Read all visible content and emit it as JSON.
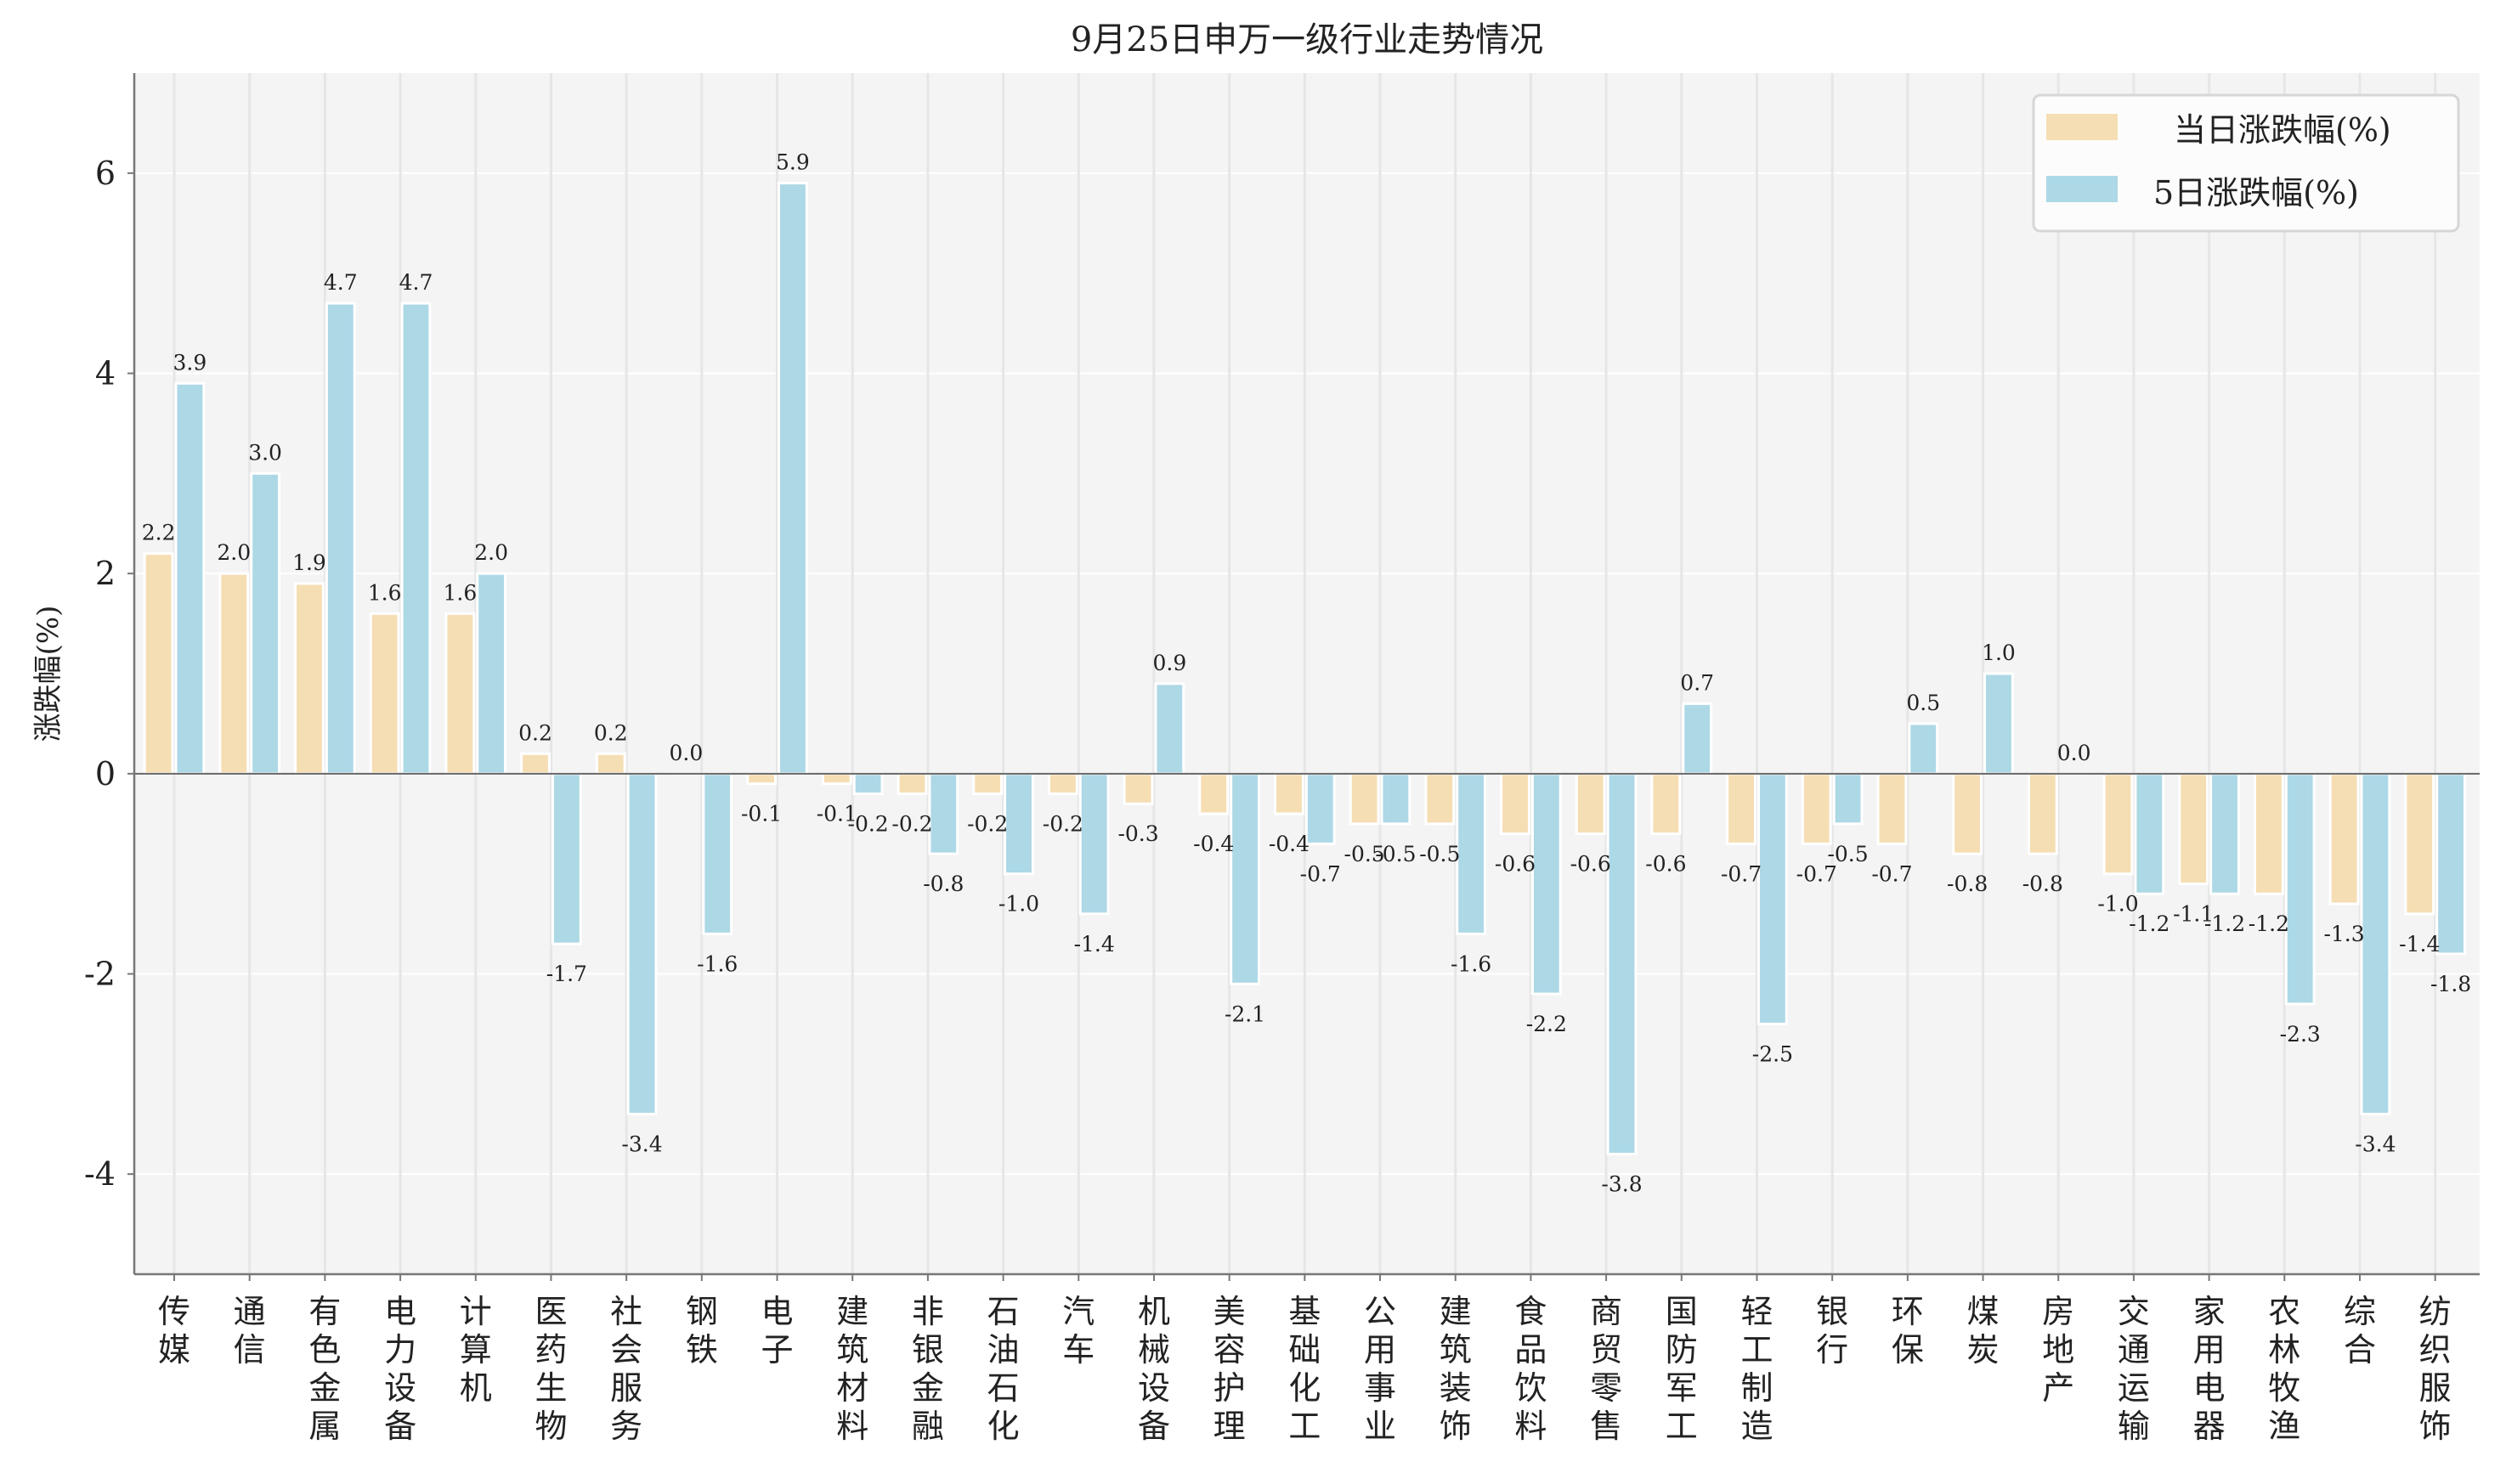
{
  "chart_data": {
    "type": "bar",
    "title": "9月25日申万一级行业走势情况",
    "xlabel": "",
    "ylabel": "涨跌幅(%)",
    "ylim": [
      -5,
      7
    ],
    "yticks": [
      -4,
      -2,
      0,
      2,
      4,
      6
    ],
    "grid": true,
    "legend_position": "top-right",
    "categories": [
      "传媒",
      "通信",
      "有色金属",
      "电力设备",
      "计算机",
      "医药生物",
      "社会服务",
      "钢铁",
      "电子",
      "建筑材料",
      "非银金融",
      "石油石化",
      "汽车",
      "机械设备",
      "美容护理",
      "基础化工",
      "公用事业",
      "建筑装饰",
      "食品饮料",
      "商贸零售",
      "国防军工",
      "轻工制造",
      "银行",
      "环保",
      "煤炭",
      "房地产",
      "交通运输",
      "家用电器",
      "农林牧渔",
      "综合",
      "纺织服饰"
    ],
    "series": [
      {
        "name": "当日涨跌幅(%)",
        "color": "#F5DEB3",
        "values": [
          2.2,
          2.0,
          1.9,
          1.6,
          1.6,
          0.2,
          0.2,
          0.0,
          -0.1,
          -0.1,
          -0.2,
          -0.2,
          -0.2,
          -0.3,
          -0.4,
          -0.4,
          -0.5,
          -0.5,
          -0.6,
          -0.6,
          -0.6,
          -0.7,
          -0.7,
          -0.7,
          -0.8,
          -0.8,
          -1.0,
          -1.1,
          -1.2,
          -1.3,
          -1.4
        ]
      },
      {
        "name": "5日涨跌幅(%)",
        "color": "#ADD8E6",
        "values": [
          3.9,
          3.0,
          4.7,
          4.7,
          2.0,
          -1.7,
          -3.4,
          -1.6,
          5.9,
          -0.2,
          -0.8,
          -1.0,
          -1.4,
          0.9,
          -2.1,
          -0.7,
          -0.5,
          -1.6,
          -2.2,
          -3.8,
          0.7,
          -2.5,
          -0.5,
          0.5,
          1.0,
          0.0,
          -1.2,
          -1.2,
          -2.3,
          -3.4,
          -1.8
        ]
      }
    ]
  }
}
